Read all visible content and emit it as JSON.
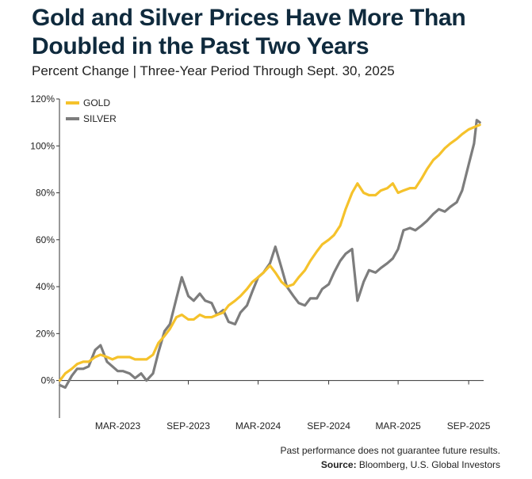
{
  "title_line1": "Gold and Silver Prices Have More Than",
  "title_line2": "Doubled in the Past Two Years",
  "subtitle": "Percent Change | Three-Year Period Through Sept. 30, 2025",
  "footnote_disclaimer": "Past performance does not guarantee future results.",
  "footnote_source_label": "Source:",
  "footnote_source_text": " Bloomberg, U.S. Global Investors",
  "colors": {
    "gold": "#f5c22b",
    "silver": "#7d7d7d",
    "axis": "#333333"
  },
  "chart_data": {
    "type": "line",
    "ylabel": "",
    "xlabel": "",
    "ylim": [
      -16,
      120
    ],
    "xlim": [
      "2022-09-30",
      "2025-10-10"
    ],
    "yticks": [
      0,
      20,
      40,
      60,
      80,
      100,
      120
    ],
    "ytick_labels": [
      "0%",
      "20%",
      "40%",
      "60%",
      "80%",
      "100%",
      "120%"
    ],
    "xticks": [
      "2023-03-01",
      "2023-09-01",
      "2024-03-01",
      "2024-09-01",
      "2025-03-01",
      "2025-09-01"
    ],
    "xtick_labels": [
      "MAR-2023",
      "SEP-2023",
      "MAR-2024",
      "SEP-2024",
      "MAR-2025",
      "SEP-2025"
    ],
    "legend": "top-left",
    "grid": false,
    "series": [
      {
        "name": "GOLD",
        "color": "#f5c22b",
        "points": [
          [
            "2022-10-01",
            0
          ],
          [
            "2022-10-15",
            3
          ],
          [
            "2022-11-01",
            5
          ],
          [
            "2022-11-15",
            7
          ],
          [
            "2022-12-01",
            8
          ],
          [
            "2022-12-15",
            8
          ],
          [
            "2023-01-01",
            10
          ],
          [
            "2023-01-15",
            11
          ],
          [
            "2023-02-01",
            10
          ],
          [
            "2023-02-15",
            9
          ],
          [
            "2023-03-01",
            10
          ],
          [
            "2023-03-15",
            10
          ],
          [
            "2023-04-01",
            10
          ],
          [
            "2023-04-15",
            9
          ],
          [
            "2023-05-01",
            9
          ],
          [
            "2023-05-15",
            9
          ],
          [
            "2023-06-01",
            11
          ],
          [
            "2023-06-15",
            16
          ],
          [
            "2023-07-01",
            19
          ],
          [
            "2023-07-15",
            22
          ],
          [
            "2023-08-01",
            27
          ],
          [
            "2023-08-15",
            28
          ],
          [
            "2023-09-01",
            26
          ],
          [
            "2023-09-15",
            26
          ],
          [
            "2023-10-01",
            28
          ],
          [
            "2023-10-15",
            27
          ],
          [
            "2023-11-01",
            27
          ],
          [
            "2023-11-15",
            28
          ],
          [
            "2023-12-01",
            29
          ],
          [
            "2023-12-15",
            32
          ],
          [
            "2024-01-01",
            34
          ],
          [
            "2024-01-15",
            36
          ],
          [
            "2024-02-01",
            39
          ],
          [
            "2024-02-15",
            42
          ],
          [
            "2024-03-01",
            44
          ],
          [
            "2024-03-15",
            46
          ],
          [
            "2024-04-01",
            49
          ],
          [
            "2024-04-15",
            46
          ],
          [
            "2024-05-01",
            42
          ],
          [
            "2024-05-15",
            40
          ],
          [
            "2024-06-01",
            41
          ],
          [
            "2024-06-15",
            44
          ],
          [
            "2024-07-01",
            47
          ],
          [
            "2024-07-15",
            51
          ],
          [
            "2024-08-01",
            55
          ],
          [
            "2024-08-15",
            58
          ],
          [
            "2024-09-01",
            60
          ],
          [
            "2024-09-15",
            62
          ],
          [
            "2024-10-01",
            66
          ],
          [
            "2024-10-15",
            73
          ],
          [
            "2024-11-01",
            80
          ],
          [
            "2024-11-15",
            84
          ],
          [
            "2024-12-01",
            80
          ],
          [
            "2024-12-15",
            79
          ],
          [
            "2025-01-01",
            79
          ],
          [
            "2025-01-15",
            81
          ],
          [
            "2025-02-01",
            82
          ],
          [
            "2025-02-15",
            84
          ],
          [
            "2025-03-01",
            80
          ],
          [
            "2025-03-15",
            81
          ],
          [
            "2025-04-01",
            82
          ],
          [
            "2025-04-15",
            82
          ],
          [
            "2025-05-01",
            86
          ],
          [
            "2025-05-15",
            90
          ],
          [
            "2025-06-01",
            94
          ],
          [
            "2025-06-15",
            96
          ],
          [
            "2025-07-01",
            99
          ],
          [
            "2025-07-15",
            101
          ],
          [
            "2025-08-01",
            103
          ],
          [
            "2025-08-15",
            105
          ],
          [
            "2025-09-01",
            107
          ],
          [
            "2025-09-15",
            108
          ],
          [
            "2025-09-30",
            109
          ]
        ]
      },
      {
        "name": "SILVER",
        "color": "#7d7d7d",
        "points": [
          [
            "2022-10-01",
            -2
          ],
          [
            "2022-10-15",
            -3
          ],
          [
            "2022-11-01",
            2
          ],
          [
            "2022-11-15",
            5
          ],
          [
            "2022-12-01",
            5
          ],
          [
            "2022-12-15",
            6
          ],
          [
            "2023-01-01",
            13
          ],
          [
            "2023-01-15",
            15
          ],
          [
            "2023-02-01",
            8
          ],
          [
            "2023-02-15",
            6
          ],
          [
            "2023-03-01",
            4
          ],
          [
            "2023-03-15",
            4
          ],
          [
            "2023-04-01",
            3
          ],
          [
            "2023-04-15",
            1
          ],
          [
            "2023-05-01",
            3
          ],
          [
            "2023-05-15",
            0
          ],
          [
            "2023-06-01",
            3
          ],
          [
            "2023-06-15",
            12
          ],
          [
            "2023-07-01",
            21
          ],
          [
            "2023-07-15",
            24
          ],
          [
            "2023-08-01",
            35
          ],
          [
            "2023-08-15",
            44
          ],
          [
            "2023-09-01",
            36
          ],
          [
            "2023-09-15",
            34
          ],
          [
            "2023-10-01",
            37
          ],
          [
            "2023-10-15",
            34
          ],
          [
            "2023-11-01",
            33
          ],
          [
            "2023-11-15",
            28
          ],
          [
            "2023-12-01",
            30
          ],
          [
            "2023-12-15",
            25
          ],
          [
            "2024-01-01",
            24
          ],
          [
            "2024-01-15",
            29
          ],
          [
            "2024-02-01",
            32
          ],
          [
            "2024-02-15",
            38
          ],
          [
            "2024-03-01",
            44
          ],
          [
            "2024-03-15",
            46
          ],
          [
            "2024-04-01",
            50
          ],
          [
            "2024-04-15",
            57
          ],
          [
            "2024-05-01",
            48
          ],
          [
            "2024-05-15",
            40
          ],
          [
            "2024-06-01",
            36
          ],
          [
            "2024-06-15",
            33
          ],
          [
            "2024-07-01",
            32
          ],
          [
            "2024-07-15",
            35
          ],
          [
            "2024-08-01",
            35
          ],
          [
            "2024-08-15",
            39
          ],
          [
            "2024-09-01",
            41
          ],
          [
            "2024-09-15",
            46
          ],
          [
            "2024-10-01",
            51
          ],
          [
            "2024-10-15",
            54
          ],
          [
            "2024-11-01",
            56
          ],
          [
            "2024-11-15",
            34
          ],
          [
            "2024-12-01",
            42
          ],
          [
            "2024-12-15",
            47
          ],
          [
            "2025-01-01",
            46
          ],
          [
            "2025-01-15",
            48
          ],
          [
            "2025-02-01",
            50
          ],
          [
            "2025-02-15",
            52
          ],
          [
            "2025-03-01",
            56
          ],
          [
            "2025-03-15",
            64
          ],
          [
            "2025-04-01",
            65
          ],
          [
            "2025-04-15",
            64
          ],
          [
            "2025-05-01",
            66
          ],
          [
            "2025-05-15",
            68
          ],
          [
            "2025-06-01",
            71
          ],
          [
            "2025-06-15",
            73
          ],
          [
            "2025-07-01",
            72
          ],
          [
            "2025-07-15",
            74
          ],
          [
            "2025-08-01",
            76
          ],
          [
            "2025-08-15",
            81
          ],
          [
            "2025-09-01",
            92
          ],
          [
            "2025-09-15",
            101
          ],
          [
            "2025-09-22",
            111
          ],
          [
            "2025-09-30",
            110
          ]
        ]
      }
    ]
  }
}
